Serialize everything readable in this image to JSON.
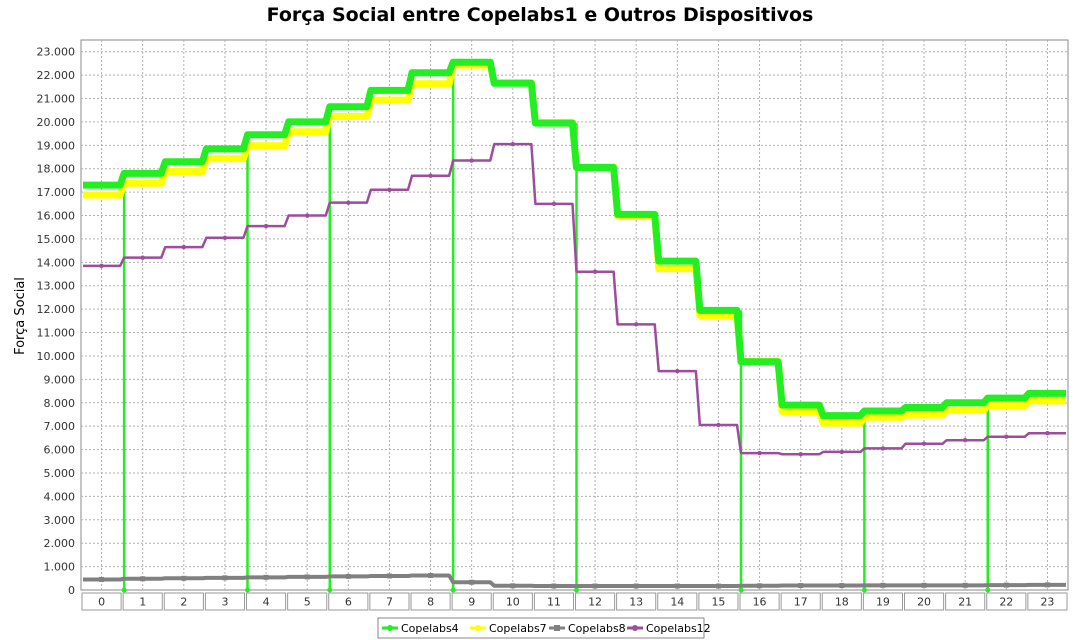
{
  "chart_data": {
    "type": "line",
    "title": "Força Social entre Copelabs1 e Outros Dispositivos",
    "xlabel": "",
    "ylabel": "Força Social",
    "categories": [
      "0",
      "1",
      "2",
      "3",
      "4",
      "5",
      "6",
      "7",
      "8",
      "9",
      "10",
      "11",
      "12",
      "13",
      "14",
      "15",
      "16",
      "17",
      "18",
      "19",
      "20",
      "21",
      "22",
      "23"
    ],
    "ylim": [
      0,
      23500
    ],
    "yticks": [
      0,
      1000,
      2000,
      3000,
      4000,
      5000,
      6000,
      7000,
      8000,
      9000,
      10000,
      11000,
      12000,
      13000,
      14000,
      15000,
      16000,
      17000,
      18000,
      19000,
      20000,
      21000,
      22000,
      23000
    ],
    "ytick_labels": [
      "0",
      "1.000",
      "2.000",
      "3.000",
      "4.000",
      "5.000",
      "6.000",
      "7.000",
      "8.000",
      "9.000",
      "10.000",
      "11.000",
      "12.000",
      "13.000",
      "14.000",
      "15.000",
      "16.000",
      "17.000",
      "18.000",
      "19.000",
      "20.000",
      "21.000",
      "22.000",
      "23.000"
    ],
    "grid": true,
    "legend_position": "bottom",
    "series": [
      {
        "name": "Copelabs4",
        "color": "#22ee22",
        "values": [
          17300,
          17800,
          18300,
          18850,
          19450,
          20000,
          20650,
          21350,
          22100,
          22550,
          21650,
          19950,
          18050,
          16050,
          14050,
          11950,
          9750,
          7900,
          7450,
          7650,
          7800,
          8000,
          8200,
          8400
        ]
      },
      {
        "name": "Copelabs7",
        "color": "#ffff00",
        "values": [
          17050,
          17550,
          18050,
          18600,
          19150,
          19750,
          20400,
          21100,
          21800,
          22600,
          21850,
          20150,
          18250,
          16150,
          13900,
          11900,
          9950,
          7800,
          7300,
          7550,
          7650,
          7850,
          8050,
          8250
        ]
      },
      {
        "name": "Copelabs8",
        "color": "#808080",
        "values": [
          450,
          480,
          500,
          520,
          540,
          560,
          580,
          600,
          620,
          330,
          180,
          170,
          170,
          170,
          170,
          170,
          180,
          190,
          190,
          200,
          200,
          200,
          210,
          220
        ]
      },
      {
        "name": "Copelabs12",
        "color": "#9c4d9c",
        "values": [
          13850,
          14200,
          14650,
          15050,
          15550,
          16000,
          16550,
          17100,
          17700,
          18350,
          19050,
          16500,
          13600,
          11350,
          9350,
          7050,
          5850,
          5800,
          5900,
          6050,
          6250,
          6400,
          6550,
          6700
        ]
      }
    ]
  }
}
